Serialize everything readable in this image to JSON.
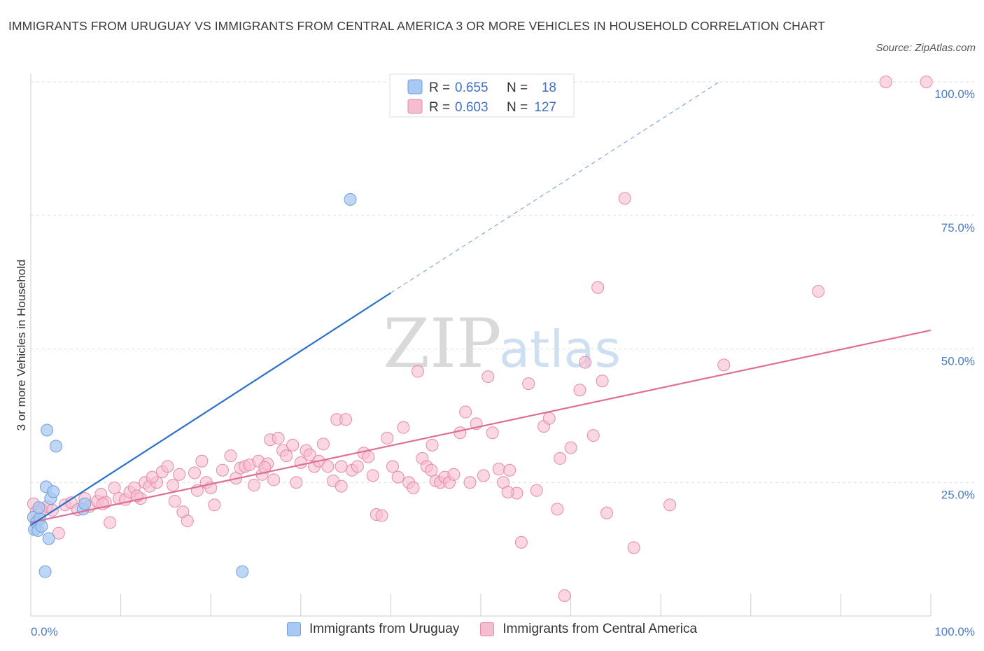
{
  "title": "IMMIGRANTS FROM URUGUAY VS IMMIGRANTS FROM CENTRAL AMERICA 3 OR MORE VEHICLES IN HOUSEHOLD CORRELATION CHART",
  "source": "Source: ZipAtlas.com",
  "watermark": {
    "zip": "ZIP",
    "atlas": "atlas"
  },
  "colors": {
    "uruguay_fill": "#a9c8f2",
    "uruguay_stroke": "#6f9fde",
    "uruguay_line": "#2b6fcd",
    "central_fill": "#f6bcd0",
    "central_stroke": "#e48aa9",
    "central_line": "#e06e97",
    "tick_text": "#4a7cc9",
    "grid": "#dddddd"
  },
  "legend": {
    "rows": [
      {
        "r_label": "R = ",
        "r_value": "0.655",
        "n_label": "N = ",
        "n_value": "18"
      },
      {
        "r_label": "R = ",
        "r_value": "0.603",
        "n_label": "N = ",
        "n_value": "127"
      }
    ]
  },
  "bottom_legend": {
    "uruguay": "Immigrants from Uruguay",
    "central": "Immigrants from Central America"
  },
  "chart_data": {
    "type": "scatter",
    "xlabel": "",
    "ylabel": "3 or more Vehicles in Household",
    "xlim": [
      0,
      100
    ],
    "ylim": [
      0,
      100
    ],
    "x_tick_labels": [
      "0.0%",
      "100.0%"
    ],
    "y_tick_labels": [
      "25.0%",
      "50.0%",
      "75.0%",
      "100.0%"
    ],
    "y_ticks": [
      25,
      50,
      75,
      100
    ],
    "grid": true,
    "series": [
      {
        "name": "Immigrants from Uruguay",
        "r": 0.655,
        "n": 18,
        "trend": {
          "x0": 0,
          "y0": 17.0,
          "x1": 40,
          "y1": 60.5,
          "dash_to_x": 76.5,
          "dash_to_y": 100
        },
        "points": [
          [
            0.3,
            18.5
          ],
          [
            0.4,
            16.2
          ],
          [
            0.6,
            17.5
          ],
          [
            0.8,
            16.0
          ],
          [
            1.0,
            18.2
          ],
          [
            1.2,
            16.8
          ],
          [
            1.6,
            8.3
          ],
          [
            1.7,
            24.2
          ],
          [
            1.8,
            34.8
          ],
          [
            2.0,
            14.5
          ],
          [
            2.2,
            22.0
          ],
          [
            2.5,
            23.3
          ],
          [
            2.8,
            31.8
          ],
          [
            5.8,
            20.0
          ],
          [
            6.0,
            21.0
          ],
          [
            35.5,
            78.0
          ],
          [
            23.5,
            8.3
          ],
          [
            0.9,
            20.3
          ]
        ]
      },
      {
        "name": "Immigrants from Central America",
        "r": 0.603,
        "n": 127,
        "trend": {
          "x0": 0,
          "y0": 17.5,
          "x1": 100,
          "y1": 53.5
        },
        "points": [
          [
            0.3,
            21.0
          ],
          [
            0.6,
            19.5
          ],
          [
            1.2,
            20.0
          ],
          [
            1.8,
            20.5
          ],
          [
            2.4,
            19.8
          ],
          [
            3.1,
            15.5
          ],
          [
            3.8,
            20.8
          ],
          [
            4.5,
            21.2
          ],
          [
            5.2,
            19.9
          ],
          [
            6.0,
            22.0
          ],
          [
            6.5,
            20.5
          ],
          [
            7.4,
            21.5
          ],
          [
            7.8,
            22.8
          ],
          [
            8.3,
            21.3
          ],
          [
            8.8,
            17.5
          ],
          [
            9.3,
            24.0
          ],
          [
            9.8,
            22.0
          ],
          [
            10.5,
            21.8
          ],
          [
            11.0,
            23.2
          ],
          [
            11.5,
            24.0
          ],
          [
            12.2,
            22.0
          ],
          [
            12.7,
            25.0
          ],
          [
            13.2,
            24.3
          ],
          [
            14.0,
            25.0
          ],
          [
            14.6,
            27.0
          ],
          [
            15.2,
            28.0
          ],
          [
            15.8,
            24.5
          ],
          [
            16.5,
            26.5
          ],
          [
            16.9,
            19.5
          ],
          [
            17.4,
            17.8
          ],
          [
            18.2,
            26.8
          ],
          [
            19.0,
            29.0
          ],
          [
            19.5,
            25.0
          ],
          [
            20.0,
            24.0
          ],
          [
            20.4,
            20.8
          ],
          [
            21.3,
            27.3
          ],
          [
            22.2,
            30.0
          ],
          [
            22.8,
            25.8
          ],
          [
            23.3,
            27.7
          ],
          [
            23.8,
            28.0
          ],
          [
            24.3,
            28.3
          ],
          [
            24.8,
            24.5
          ],
          [
            25.3,
            29.0
          ],
          [
            25.7,
            26.5
          ],
          [
            26.3,
            28.5
          ],
          [
            26.6,
            33.0
          ],
          [
            27.0,
            25.5
          ],
          [
            27.5,
            33.3
          ],
          [
            28.0,
            31.0
          ],
          [
            28.4,
            30.0
          ],
          [
            29.1,
            32.0
          ],
          [
            29.5,
            25.0
          ],
          [
            30.0,
            28.7
          ],
          [
            30.6,
            31.0
          ],
          [
            31.0,
            30.2
          ],
          [
            31.5,
            28.0
          ],
          [
            32.0,
            29.0
          ],
          [
            32.5,
            32.2
          ],
          [
            33.0,
            28.0
          ],
          [
            33.6,
            25.3
          ],
          [
            34.0,
            36.8
          ],
          [
            34.5,
            28.0
          ],
          [
            35.0,
            36.8
          ],
          [
            35.7,
            27.3
          ],
          [
            36.3,
            28.0
          ],
          [
            37.0,
            30.5
          ],
          [
            37.5,
            29.8
          ],
          [
            38.0,
            26.3
          ],
          [
            38.4,
            19.0
          ],
          [
            39.0,
            18.8
          ],
          [
            39.6,
            33.3
          ],
          [
            40.2,
            28.0
          ],
          [
            40.8,
            26.0
          ],
          [
            41.4,
            35.3
          ],
          [
            42.0,
            25.0
          ],
          [
            42.5,
            24.0
          ],
          [
            43.0,
            45.8
          ],
          [
            43.5,
            29.5
          ],
          [
            44.0,
            28.0
          ],
          [
            44.6,
            32.0
          ],
          [
            45.0,
            25.3
          ],
          [
            45.5,
            25.0
          ],
          [
            46.0,
            26.0
          ],
          [
            46.5,
            25.0
          ],
          [
            47.0,
            26.5
          ],
          [
            47.7,
            34.3
          ],
          [
            48.3,
            38.2
          ],
          [
            48.8,
            25.0
          ],
          [
            49.5,
            36.0
          ],
          [
            50.3,
            26.3
          ],
          [
            50.8,
            44.8
          ],
          [
            51.3,
            34.3
          ],
          [
            52.0,
            27.5
          ],
          [
            52.5,
            25.0
          ],
          [
            53.2,
            27.3
          ],
          [
            54.0,
            23.0
          ],
          [
            54.5,
            13.8
          ],
          [
            55.3,
            43.5
          ],
          [
            56.2,
            23.5
          ],
          [
            57.0,
            35.5
          ],
          [
            57.6,
            37.0
          ],
          [
            58.5,
            20.0
          ],
          [
            58.8,
            29.5
          ],
          [
            59.3,
            3.8
          ],
          [
            60.0,
            31.5
          ],
          [
            61.0,
            42.3
          ],
          [
            61.6,
            47.5
          ],
          [
            62.5,
            33.8
          ],
          [
            63.5,
            44.0
          ],
          [
            64.0,
            19.3
          ],
          [
            63.0,
            61.5
          ],
          [
            66.0,
            78.2
          ],
          [
            67.0,
            12.8
          ],
          [
            71.0,
            20.8
          ],
          [
            77.0,
            47.0
          ],
          [
            95.0,
            100.0
          ],
          [
            99.5,
            100.0
          ],
          [
            87.5,
            60.8
          ],
          [
            16.0,
            21.5
          ],
          [
            13.5,
            26.0
          ],
          [
            18.5,
            23.5
          ],
          [
            26.0,
            27.8
          ],
          [
            34.5,
            24.3
          ],
          [
            44.5,
            27.3
          ],
          [
            53.0,
            23.2
          ],
          [
            8.0,
            21.0
          ],
          [
            11.8,
            22.5
          ]
        ]
      }
    ]
  }
}
